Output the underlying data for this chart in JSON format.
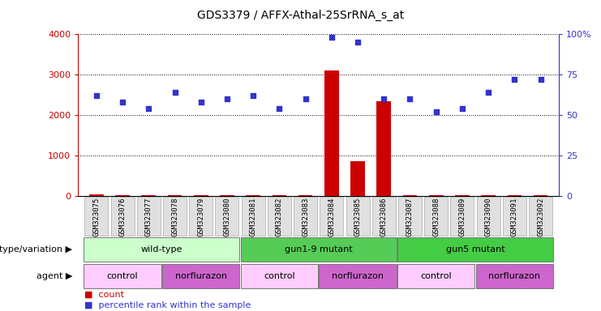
{
  "title": "GDS3379 / AFFX-Athal-25SrRNA_s_at",
  "samples": [
    "GSM323075",
    "GSM323076",
    "GSM323077",
    "GSM323078",
    "GSM323079",
    "GSM323080",
    "GSM323081",
    "GSM323082",
    "GSM323083",
    "GSM323084",
    "GSM323085",
    "GSM323086",
    "GSM323087",
    "GSM323088",
    "GSM323089",
    "GSM323090",
    "GSM323091",
    "GSM323092"
  ],
  "counts": [
    30,
    20,
    20,
    25,
    25,
    25,
    20,
    20,
    20,
    3100,
    850,
    2350,
    20,
    20,
    20,
    20,
    20,
    20
  ],
  "percentile_ranks": [
    62,
    58,
    54,
    64,
    58,
    60,
    62,
    54,
    60,
    98,
    95,
    60,
    60,
    52,
    54,
    64,
    72,
    72
  ],
  "left_ylim": [
    0,
    4000
  ],
  "right_ylim": [
    0,
    100
  ],
  "left_yticks": [
    0,
    1000,
    2000,
    3000,
    4000
  ],
  "right_yticks": [
    0,
    25,
    50,
    75,
    100
  ],
  "right_yticklabels": [
    "0",
    "25",
    "50",
    "75",
    "100%"
  ],
  "bar_color": "#cc0000",
  "dot_color": "#3333cc",
  "genotype_groups": [
    {
      "label": "wild-type",
      "start": 0,
      "end": 5,
      "color": "#ccffcc"
    },
    {
      "label": "gun1-9 mutant",
      "start": 6,
      "end": 11,
      "color": "#55cc55"
    },
    {
      "label": "gun5 mutant",
      "start": 12,
      "end": 17,
      "color": "#44cc44"
    }
  ],
  "agent_groups": [
    {
      "label": "control",
      "start": 0,
      "end": 2,
      "color": "#ffccff"
    },
    {
      "label": "norflurazon",
      "start": 3,
      "end": 5,
      "color": "#cc66cc"
    },
    {
      "label": "control",
      "start": 6,
      "end": 8,
      "color": "#ffccff"
    },
    {
      "label": "norflurazon",
      "start": 9,
      "end": 11,
      "color": "#cc66cc"
    },
    {
      "label": "control",
      "start": 12,
      "end": 14,
      "color": "#ffccff"
    },
    {
      "label": "norflurazon",
      "start": 15,
      "end": 17,
      "color": "#cc66cc"
    }
  ],
  "left_axis_color": "#cc0000",
  "right_axis_color": "#3333cc",
  "background_color": "white",
  "grid_color": "black",
  "title_fontsize": 10,
  "tick_label_fontsize": 6.5,
  "annotation_fontsize": 8,
  "row_label_fontsize": 8,
  "legend_fontsize": 8
}
